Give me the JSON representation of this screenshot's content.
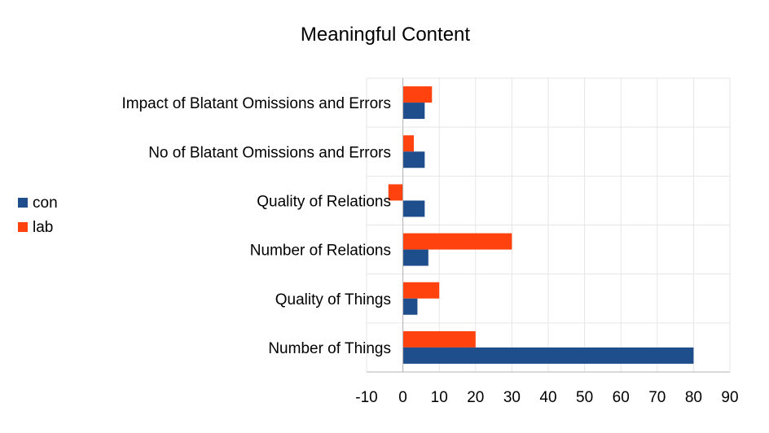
{
  "chart_data": {
    "type": "bar",
    "orientation": "horizontal",
    "title": "Meaningful Content",
    "categories": [
      "Number of Things",
      "Quality of Things",
      "Number of Relations",
      "Quality of Relations",
      "No of Blatant Omissions and Errors",
      "Impact of Blatant Omissions and Errors"
    ],
    "series": [
      {
        "name": "con",
        "color": "#1f4e8c",
        "values": [
          80,
          4,
          7,
          6,
          6,
          6
        ]
      },
      {
        "name": "lab",
        "color": "#ff420e",
        "values": [
          20,
          10,
          30,
          -4,
          3,
          8
        ]
      }
    ],
    "xlim": [
      -10,
      90
    ],
    "xticks": [
      "-10",
      "0",
      "10",
      "20",
      "30",
      "40",
      "50",
      "60",
      "70",
      "80",
      "90"
    ],
    "grid": true,
    "legend_position": "left"
  }
}
